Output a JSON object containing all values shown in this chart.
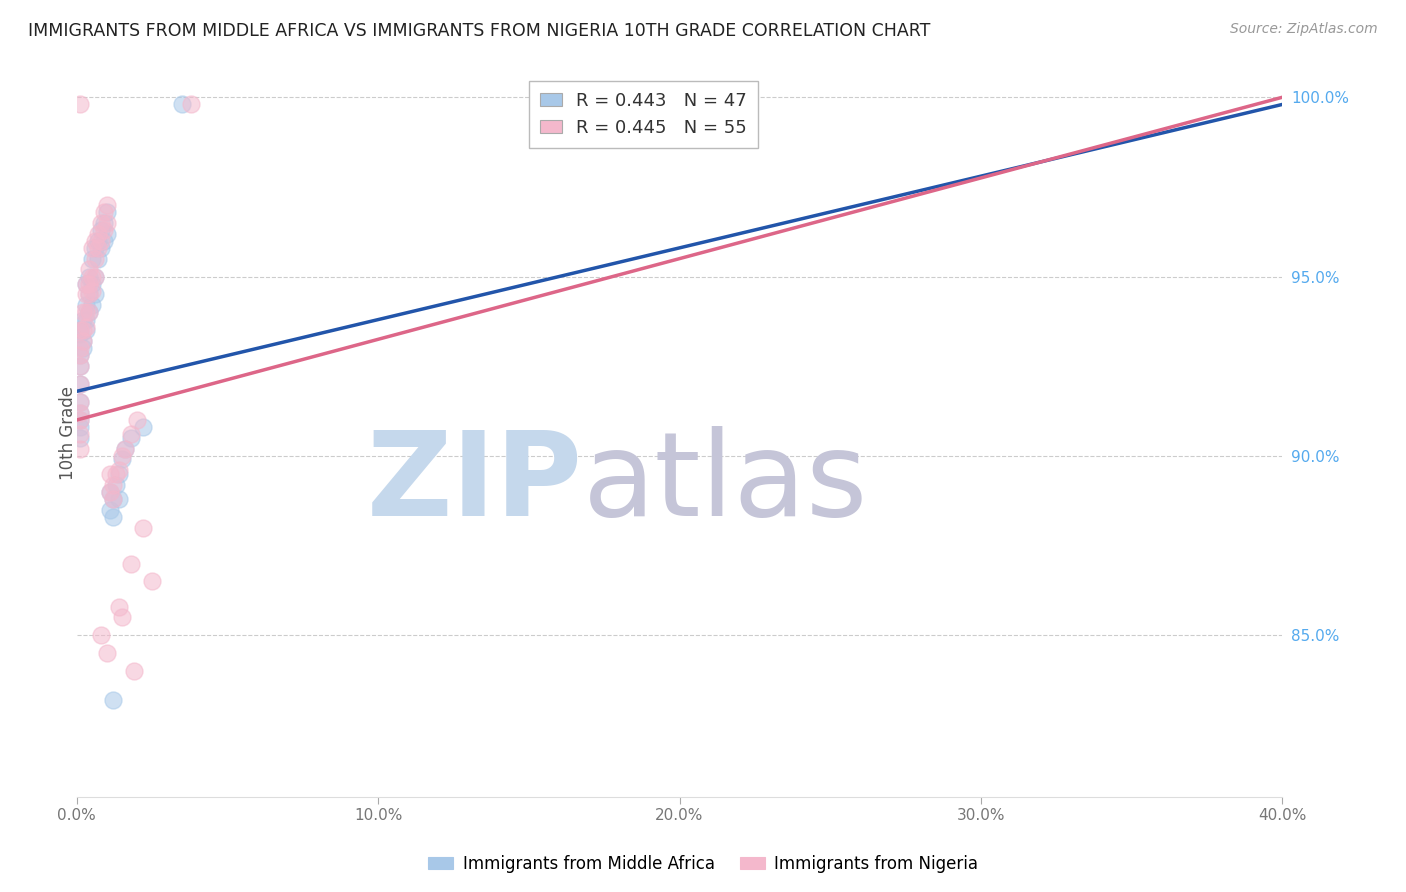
{
  "title": "IMMIGRANTS FROM MIDDLE AFRICA VS IMMIGRANTS FROM NIGERIA 10TH GRADE CORRELATION CHART",
  "source": "Source: ZipAtlas.com",
  "ylabel": "10th Grade",
  "ytick_labels": [
    "100.0%",
    "95.0%",
    "90.0%",
    "85.0%"
  ],
  "ytick_positions": [
    1.0,
    0.95,
    0.9,
    0.85
  ],
  "xlim": [
    0.0,
    0.4
  ],
  "ylim": [
    0.805,
    1.008
  ],
  "xtick_positions": [
    0.0,
    0.1,
    0.2,
    0.3,
    0.4
  ],
  "xtick_labels": [
    "0.0%",
    "10.0%",
    "20.0%",
    "30.0%",
    "40.0%"
  ],
  "legend_blue_r": "R = 0.443",
  "legend_blue_n": "N = 47",
  "legend_pink_r": "R = 0.445",
  "legend_pink_n": "N = 55",
  "blue_color": "#a8c8e8",
  "pink_color": "#f4b8cc",
  "blue_line_color": "#2255aa",
  "pink_line_color": "#dd6688",
  "blue_scatter": [
    [
      0.001,
      0.934
    ],
    [
      0.001,
      0.928
    ],
    [
      0.001,
      0.925
    ],
    [
      0.001,
      0.92
    ],
    [
      0.001,
      0.915
    ],
    [
      0.001,
      0.912
    ],
    [
      0.001,
      0.91
    ],
    [
      0.001,
      0.908
    ],
    [
      0.001,
      0.905
    ],
    [
      0.001,
      0.935
    ],
    [
      0.002,
      0.938
    ],
    [
      0.002,
      0.932
    ],
    [
      0.002,
      0.93
    ],
    [
      0.003,
      0.948
    ],
    [
      0.003,
      0.942
    ],
    [
      0.003,
      0.938
    ],
    [
      0.003,
      0.935
    ],
    [
      0.004,
      0.95
    ],
    [
      0.004,
      0.945
    ],
    [
      0.004,
      0.94
    ],
    [
      0.005,
      0.955
    ],
    [
      0.005,
      0.948
    ],
    [
      0.005,
      0.942
    ],
    [
      0.006,
      0.958
    ],
    [
      0.006,
      0.95
    ],
    [
      0.006,
      0.945
    ],
    [
      0.007,
      0.96
    ],
    [
      0.007,
      0.955
    ],
    [
      0.008,
      0.963
    ],
    [
      0.008,
      0.958
    ],
    [
      0.009,
      0.965
    ],
    [
      0.009,
      0.96
    ],
    [
      0.01,
      0.968
    ],
    [
      0.01,
      0.962
    ],
    [
      0.011,
      0.89
    ],
    [
      0.011,
      0.885
    ],
    [
      0.012,
      0.888
    ],
    [
      0.012,
      0.883
    ],
    [
      0.013,
      0.892
    ],
    [
      0.014,
      0.895
    ],
    [
      0.014,
      0.888
    ],
    [
      0.015,
      0.899
    ],
    [
      0.016,
      0.902
    ],
    [
      0.018,
      0.905
    ],
    [
      0.022,
      0.908
    ],
    [
      0.035,
      0.998
    ],
    [
      0.012,
      0.832
    ]
  ],
  "pink_scatter": [
    [
      0.001,
      0.935
    ],
    [
      0.001,
      0.93
    ],
    [
      0.001,
      0.928
    ],
    [
      0.001,
      0.925
    ],
    [
      0.001,
      0.92
    ],
    [
      0.001,
      0.915
    ],
    [
      0.001,
      0.912
    ],
    [
      0.001,
      0.91
    ],
    [
      0.001,
      0.906
    ],
    [
      0.001,
      0.902
    ],
    [
      0.001,
      0.998
    ],
    [
      0.002,
      0.94
    ],
    [
      0.002,
      0.935
    ],
    [
      0.002,
      0.932
    ],
    [
      0.003,
      0.948
    ],
    [
      0.003,
      0.945
    ],
    [
      0.003,
      0.94
    ],
    [
      0.003,
      0.936
    ],
    [
      0.004,
      0.952
    ],
    [
      0.004,
      0.948
    ],
    [
      0.004,
      0.945
    ],
    [
      0.004,
      0.94
    ],
    [
      0.005,
      0.958
    ],
    [
      0.005,
      0.95
    ],
    [
      0.005,
      0.946
    ],
    [
      0.006,
      0.96
    ],
    [
      0.006,
      0.955
    ],
    [
      0.006,
      0.95
    ],
    [
      0.007,
      0.962
    ],
    [
      0.007,
      0.958
    ],
    [
      0.008,
      0.965
    ],
    [
      0.008,
      0.96
    ],
    [
      0.009,
      0.968
    ],
    [
      0.009,
      0.963
    ],
    [
      0.01,
      0.97
    ],
    [
      0.01,
      0.965
    ],
    [
      0.011,
      0.895
    ],
    [
      0.011,
      0.89
    ],
    [
      0.012,
      0.892
    ],
    [
      0.012,
      0.888
    ],
    [
      0.013,
      0.895
    ],
    [
      0.014,
      0.896
    ],
    [
      0.015,
      0.9
    ],
    [
      0.016,
      0.902
    ],
    [
      0.018,
      0.906
    ],
    [
      0.02,
      0.91
    ],
    [
      0.038,
      0.998
    ],
    [
      0.008,
      0.85
    ],
    [
      0.01,
      0.845
    ],
    [
      0.014,
      0.858
    ],
    [
      0.015,
      0.855
    ],
    [
      0.018,
      0.87
    ],
    [
      0.022,
      0.88
    ],
    [
      0.025,
      0.865
    ],
    [
      0.019,
      0.84
    ]
  ],
  "blue_line": [
    [
      0.0,
      0.918
    ],
    [
      0.4,
      0.998
    ]
  ],
  "pink_line": [
    [
      0.0,
      0.91
    ],
    [
      0.4,
      1.0
    ]
  ],
  "watermark_zip_color": "#c5d8ec",
  "watermark_atlas_color": "#c5c5d8"
}
